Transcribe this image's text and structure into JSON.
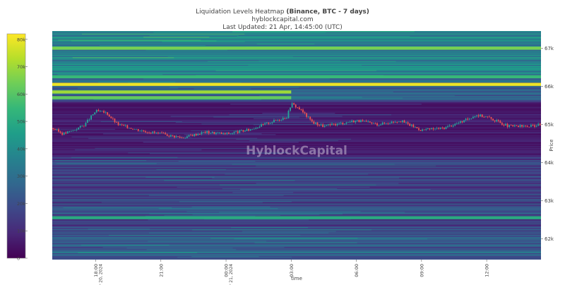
{
  "header": {
    "title_main": "Liquidation Levels Heatmap",
    "title_bold": "(Binance, BTC - 7 days)",
    "subtitle": "hyblockcapital.com",
    "updated": "Last Updated: 21 Apr, 14:45:00 (UTC)"
  },
  "watermark": "HyblockCapital",
  "colors": {
    "bullish": "#26a69a",
    "bearish": "#ef5350",
    "colorscale": [
      "#440154",
      "#482878",
      "#3e4989",
      "#31688e",
      "#26828e",
      "#1f9e89",
      "#35b779",
      "#6ece58",
      "#b5de2b",
      "#fde725"
    ]
  },
  "chart_data": {
    "type": "heatmap",
    "title": "Liquidation Levels Heatmap (Binance, BTC - 7 days)",
    "xlabel": "time",
    "ylabel": "Price",
    "x_ticks": [
      {
        "label": "18:00",
        "sub": "Apr 20, 2024"
      },
      {
        "label": "21:00",
        "sub": ""
      },
      {
        "label": "00:00",
        "sub": "Apr 21, 2024"
      },
      {
        "label": "03:00",
        "sub": ""
      },
      {
        "label": "06:00",
        "sub": ""
      },
      {
        "label": "09:00",
        "sub": ""
      },
      {
        "label": "12:00",
        "sub": ""
      }
    ],
    "x_range_hours": [
      0,
      22.5
    ],
    "x_tick_hours": [
      2,
      5,
      8,
      11,
      14,
      17,
      20
    ],
    "y_ticks": [
      "62k",
      "63k",
      "64k",
      "65k",
      "66k",
      "67k"
    ],
    "y_tick_values": [
      62000,
      63000,
      64000,
      65000,
      66000,
      67000
    ],
    "ylim": [
      61450,
      67450
    ],
    "colorbar": {
      "ticks": [
        "0",
        "10k",
        "20k",
        "30k",
        "40k",
        "50k",
        "60k",
        "70k",
        "80k"
      ],
      "tick_values": [
        0,
        10000,
        20000,
        30000,
        40000,
        50000,
        60000,
        70000,
        80000
      ],
      "range": [
        0,
        82000
      ]
    },
    "highlight_levels": [
      {
        "price": 67000,
        "value": 65000
      },
      {
        "price": 66250,
        "value": 55000
      },
      {
        "price": 66050,
        "value": 80000
      },
      {
        "price": 65850,
        "value": 70000,
        "ends_at_hour": 11
      },
      {
        "price": 65700,
        "value": 62000,
        "ends_at_hour": 11
      },
      {
        "price": 62550,
        "value": 50000
      }
    ],
    "price_path": [
      {
        "t": 0.0,
        "p": 64900
      },
      {
        "t": 0.5,
        "p": 64750
      },
      {
        "t": 1.0,
        "p": 64850
      },
      {
        "t": 1.5,
        "p": 65000
      },
      {
        "t": 2.0,
        "p": 65350
      },
      {
        "t": 2.5,
        "p": 65300
      },
      {
        "t": 3.0,
        "p": 65000
      },
      {
        "t": 4.0,
        "p": 64850
      },
      {
        "t": 5.0,
        "p": 64750
      },
      {
        "t": 6.0,
        "p": 64650
      },
      {
        "t": 7.0,
        "p": 64800
      },
      {
        "t": 8.0,
        "p": 64750
      },
      {
        "t": 9.0,
        "p": 64850
      },
      {
        "t": 10.0,
        "p": 65050
      },
      {
        "t": 10.8,
        "p": 65200
      },
      {
        "t": 11.0,
        "p": 65550
      },
      {
        "t": 11.4,
        "p": 65400
      },
      {
        "t": 12.0,
        "p": 65050
      },
      {
        "t": 12.5,
        "p": 64950
      },
      {
        "t": 13.0,
        "p": 65000
      },
      {
        "t": 14.0,
        "p": 65100
      },
      {
        "t": 15.0,
        "p": 65000
      },
      {
        "t": 16.0,
        "p": 65100
      },
      {
        "t": 17.0,
        "p": 64850
      },
      {
        "t": 18.0,
        "p": 64900
      },
      {
        "t": 19.0,
        "p": 65100
      },
      {
        "t": 19.5,
        "p": 65250
      },
      {
        "t": 20.0,
        "p": 65200
      },
      {
        "t": 21.0,
        "p": 64950
      },
      {
        "t": 22.0,
        "p": 64950
      },
      {
        "t": 22.5,
        "p": 65000
      }
    ]
  }
}
